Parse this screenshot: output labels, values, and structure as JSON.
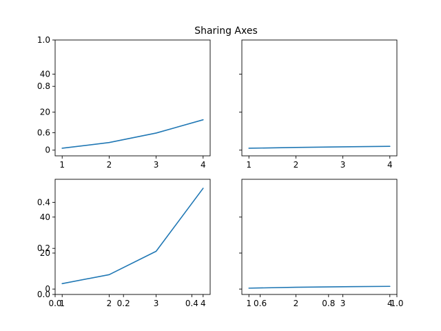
{
  "chart_data": {
    "type": "line",
    "title": "Sharing Axes",
    "x": [
      1,
      2,
      3,
      4
    ],
    "color": "#1f77b4",
    "background_axes": {
      "top": {
        "xlim": [
          0.0,
          1.0
        ],
        "ylim": [
          0.5,
          1.0
        ],
        "yticks": [
          "0.6",
          "0.8",
          "1.0"
        ]
      },
      "bottom": {
        "xlim": [
          0.0,
          1.0
        ],
        "ylim": [
          0.0,
          0.5
        ],
        "xticks": [
          "0.0",
          "0.2",
          "0.4",
          "0.6",
          "0.8",
          "1.0"
        ],
        "yticks": [
          "0.0",
          "0.2",
          "0.4"
        ]
      }
    },
    "subplots": [
      {
        "position": "top-left",
        "xticks": [
          "1",
          "2",
          "3",
          "4"
        ],
        "yticks": [
          "0",
          "20",
          "40"
        ],
        "xlim": [
          0.85,
          4.15
        ],
        "ylim": [
          -3,
          58
        ],
        "values": [
          1,
          4,
          9,
          16
        ]
      },
      {
        "position": "top-right",
        "xticks": [
          "1",
          "2",
          "3",
          "4"
        ],
        "yticks": [],
        "xlim": [
          0.85,
          4.15
        ],
        "ylim": [
          -3,
          58
        ],
        "values": [
          1,
          1.414,
          1.732,
          2
        ]
      },
      {
        "position": "bottom-left",
        "xticks": [
          "1",
          "2",
          "3",
          "4"
        ],
        "yticks": [
          "0",
          "20",
          "40"
        ],
        "xlim": [
          0.85,
          4.15
        ],
        "ylim": [
          -3,
          61
        ],
        "values": [
          3,
          8,
          21,
          56
        ]
      },
      {
        "position": "bottom-right",
        "xticks": [
          "1",
          "2",
          "3",
          "4"
        ],
        "yticks": [],
        "xlim": [
          0.85,
          4.15
        ],
        "ylim": [
          -3,
          61
        ],
        "values": [
          0.5,
          1.0,
          1.3,
          1.5
        ]
      }
    ]
  }
}
